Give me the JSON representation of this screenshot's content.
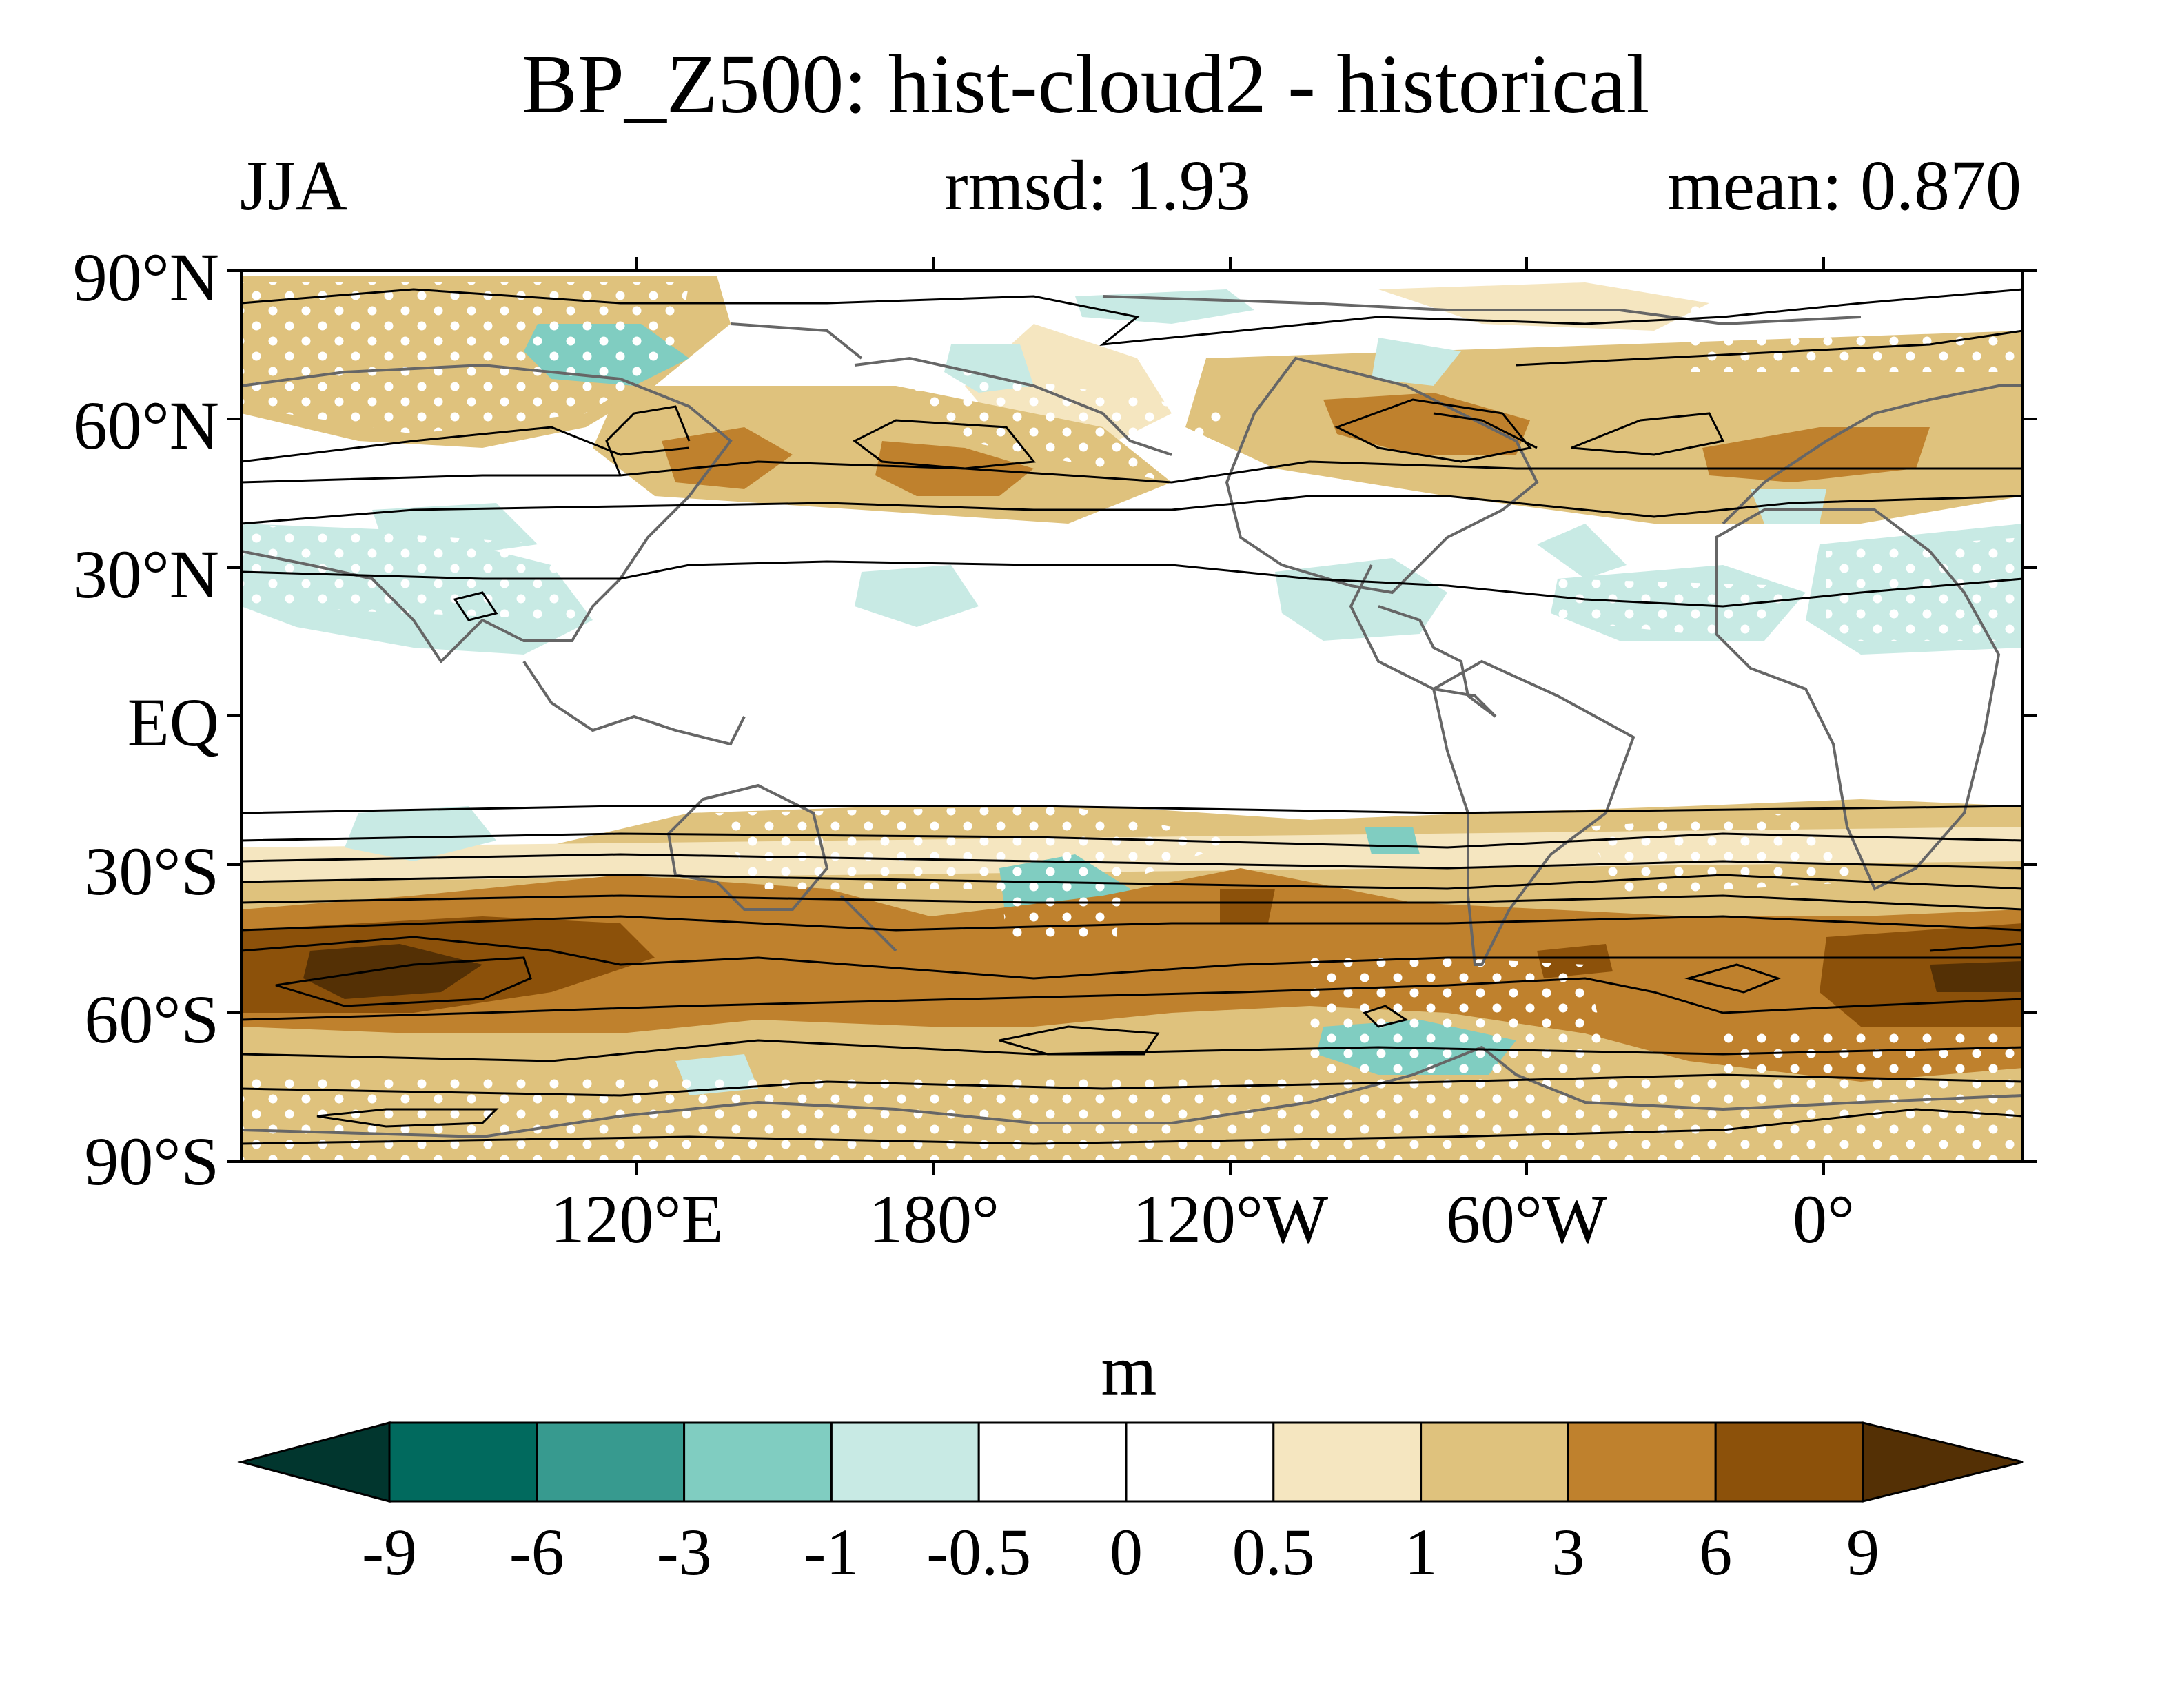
{
  "header": {
    "title": "BP_Z500: hist-cloud2 - historical",
    "season": "JJA",
    "rmsd": "rmsd: 1.93",
    "mean": "mean: 0.870"
  },
  "map": {
    "lat_labels": [
      "90°N",
      "60°N",
      "30°N",
      "EQ",
      "30°S",
      "60°S",
      "90°S"
    ],
    "lon_labels": [
      "120°E",
      "180°",
      "120°W",
      "60°W",
      "0°"
    ],
    "grid": false,
    "stippling": "white dots",
    "contours": "black lines",
    "coastlines": "grey lines"
  },
  "colorbar": {
    "units": "m",
    "tick_labels": [
      "-9",
      "-6",
      "-3",
      "-1",
      "-0.5",
      "0",
      "0.5",
      "1",
      "3",
      "6",
      "9"
    ],
    "colors": [
      "#01362e",
      "#016a5e",
      "#379a8f",
      "#80cdc1",
      "#c8eae4",
      "#ffffff",
      "#ffffff",
      "#f5e6c0",
      "#dfc27d",
      "#bf812d",
      "#8c510a",
      "#543005"
    ],
    "extend": "both"
  }
}
